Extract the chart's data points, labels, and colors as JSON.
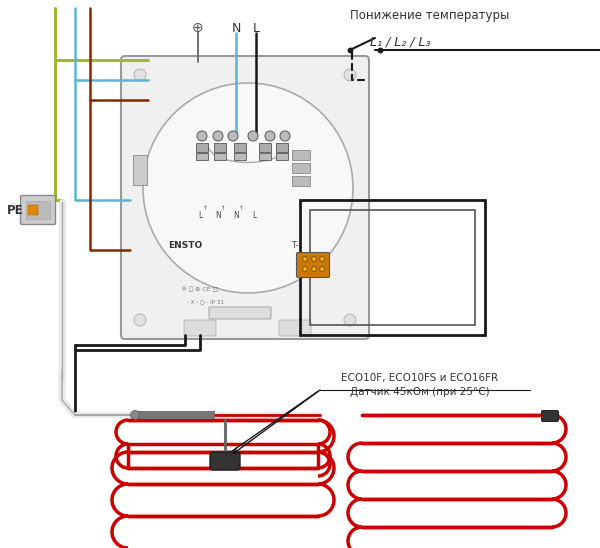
{
  "bg_color": "#ffffff",
  "text_top_label": "Понижение температуры",
  "text_L_label": "L₁ / L₂ / L₃",
  "text_N": "N",
  "text_L": "L",
  "text_PE": "PE",
  "text_sensor1": "ECO10F, ECO10FS и ECO16FR",
  "text_sensor2": "Датчик 45кОм (при 25°C)",
  "text_ensto": "ENSTO",
  "text_T": "T-",
  "text_ip": "IP 31",
  "green_yellow": "#a0b830",
  "blue": "#5ab5d5",
  "brown": "#8B2500",
  "black": "#1a1a1a",
  "red": "#cc0000",
  "gray": "#888888",
  "light_gray": "#cccccc",
  "white_wire": "#e8e8e8",
  "figsize": [
    6.0,
    5.48
  ],
  "dpi": 100
}
